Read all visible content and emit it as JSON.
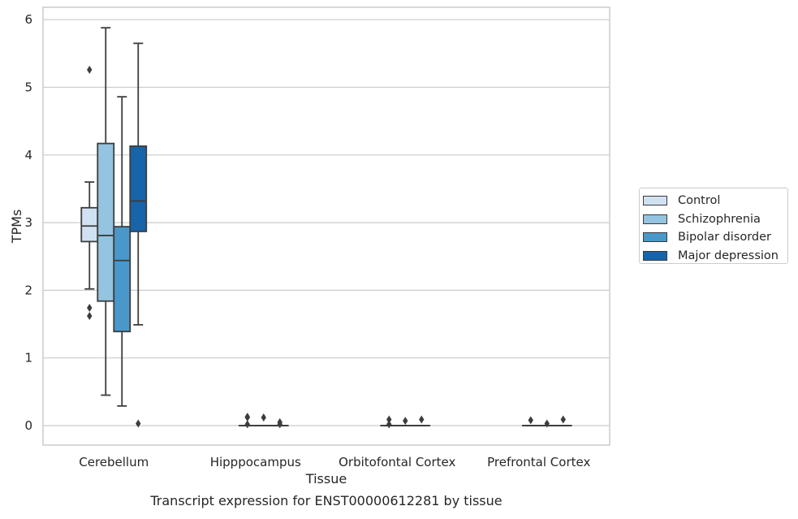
{
  "chart_data": {
    "type": "box",
    "caption": "Transcript expression for ENST00000612281 by tissue",
    "xlabel": "Tissue",
    "ylabel": "TPMs",
    "ylim": [
      -0.3,
      6.2
    ],
    "yticks": [
      0,
      1,
      2,
      3,
      4,
      5,
      6
    ],
    "grid": true,
    "legend_position": "right",
    "categories": [
      "Cerebellum",
      "Hipppocampus",
      "Orbitofontal Cortex",
      "Prefrontal Cortex"
    ],
    "series": [
      {
        "name": "Control",
        "color": "#d0e1f2",
        "boxes": [
          {
            "q1": 2.72,
            "median": 2.95,
            "q3": 3.22,
            "whisker_low": 2.02,
            "whisker_high": 3.6,
            "outliers": [
              5.26,
              1.74,
              1.62
            ]
          },
          null,
          null,
          null
        ]
      },
      {
        "name": "Schizophrenia",
        "color": "#94c4df",
        "boxes": [
          {
            "q1": 1.84,
            "median": 2.81,
            "q3": 4.17,
            "whisker_low": 0.45,
            "whisker_high": 5.88,
            "outliers": []
          },
          {
            "q1": 0.0,
            "median": 0.0,
            "q3": 0.0,
            "whisker_low": 0.0,
            "whisker_high": 0.0,
            "outliers": [
              0.13,
              0.02,
              0.12
            ]
          },
          {
            "q1": 0.0,
            "median": 0.0,
            "q3": 0.0,
            "whisker_low": 0.0,
            "whisker_high": 0.0,
            "outliers": [
              0.02,
              0.09
            ]
          },
          {
            "q1": 0.0,
            "median": 0.0,
            "q3": 0.0,
            "whisker_low": 0.0,
            "whisker_high": 0.0,
            "outliers": [
              0.08
            ]
          }
        ]
      },
      {
        "name": "Bipolar disorder",
        "color": "#4a98c9",
        "boxes": [
          {
            "q1": 1.39,
            "median": 2.44,
            "q3": 2.94,
            "whisker_low": 0.29,
            "whisker_high": 4.86,
            "outliers": []
          },
          {
            "q1": 0.0,
            "median": 0.0,
            "q3": 0.0,
            "whisker_low": 0.0,
            "whisker_high": 0.0,
            "outliers": [
              0.12
            ]
          },
          {
            "q1": 0.0,
            "median": 0.0,
            "q3": 0.0,
            "whisker_low": 0.0,
            "whisker_high": 0.0,
            "outliers": [
              0.07
            ]
          },
          {
            "q1": 0.0,
            "median": 0.0,
            "q3": 0.0,
            "whisker_low": 0.0,
            "whisker_high": 0.0,
            "outliers": [
              0.03
            ]
          }
        ]
      },
      {
        "name": "Major depression",
        "color": "#1764ab",
        "boxes": [
          {
            "q1": 2.87,
            "median": 3.32,
            "q3": 4.13,
            "whisker_low": 1.49,
            "whisker_high": 5.65,
            "outliers": [
              0.03
            ]
          },
          {
            "q1": 0.0,
            "median": 0.0,
            "q3": 0.0,
            "whisker_low": 0.0,
            "whisker_high": 0.0,
            "outliers": [
              0.05,
              0.02
            ]
          },
          {
            "q1": 0.0,
            "median": 0.0,
            "q3": 0.0,
            "whisker_low": 0.0,
            "whisker_high": 0.0,
            "outliers": [
              0.09
            ]
          },
          {
            "q1": 0.0,
            "median": 0.0,
            "q3": 0.0,
            "whisker_low": 0.0,
            "whisker_high": 0.0,
            "outliers": [
              0.09
            ]
          }
        ]
      }
    ]
  }
}
